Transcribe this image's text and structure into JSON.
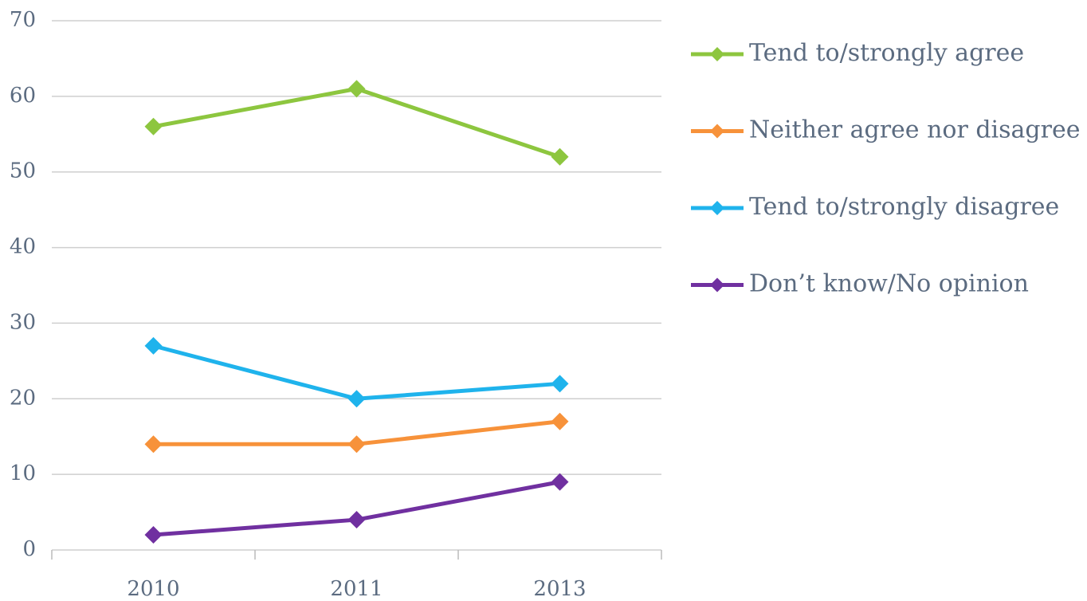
{
  "chart_data": {
    "type": "line",
    "categories": [
      "2010",
      "2011",
      "2013"
    ],
    "series": [
      {
        "name": "Tend to/strongly agree",
        "color": "#8dc63f",
        "values": [
          56,
          61,
          52
        ]
      },
      {
        "name": "Neither agree nor disagree",
        "color": "#f7923a",
        "values": [
          14,
          14,
          17
        ]
      },
      {
        "name": "Tend to/strongly disagree",
        "color": "#1fb3ec",
        "values": [
          27,
          20,
          22
        ]
      },
      {
        "name": "Don’t know/No opinion",
        "color": "#7030a0",
        "values": [
          2,
          4,
          9
        ]
      }
    ],
    "ylim": [
      0,
      70
    ],
    "yticks": [
      0,
      10,
      20,
      30,
      40,
      50,
      60,
      70
    ],
    "grid": true,
    "legend": "right"
  }
}
